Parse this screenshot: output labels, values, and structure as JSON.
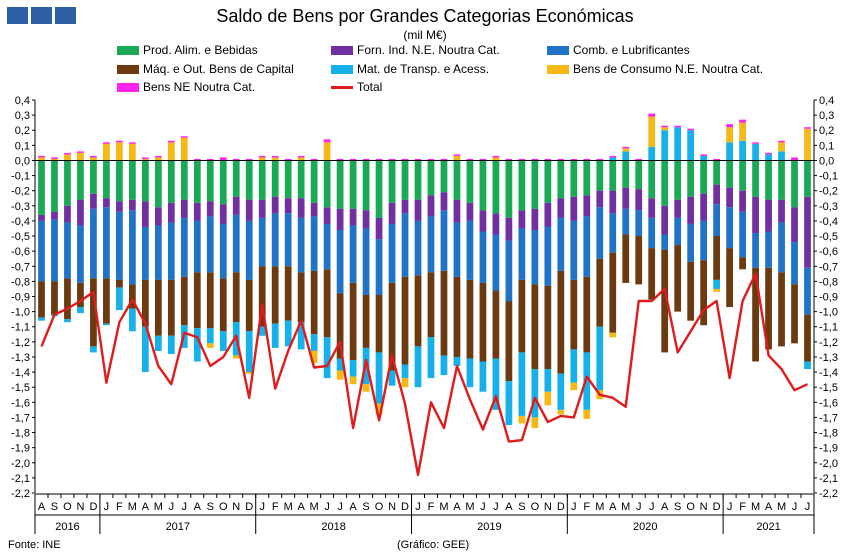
{
  "chart_data": {
    "type": "bar",
    "title": "Saldo de Bens por Grandes Categorias Económicas",
    "subtitle": "(mil M€)",
    "ylim": [
      -2.2,
      0.4
    ],
    "yticks": [
      "0,4",
      "0,3",
      "0,2",
      "0,1",
      "0,0",
      "-0,1",
      "-0,2",
      "-0,3",
      "-0,4",
      "-0,5",
      "-0,6",
      "-0,7",
      "-0,8",
      "-0,9",
      "-1,0",
      "-1,1",
      "-1,2",
      "-1,3",
      "-1,4",
      "-1,5",
      "-1,6",
      "-1,7",
      "-1,8",
      "-1,9",
      "-2,0",
      "-2,1",
      "-2,2"
    ],
    "categories": [
      "A",
      "S",
      "O",
      "N",
      "D",
      "J",
      "F",
      "M",
      "A",
      "M",
      "J",
      "J",
      "A",
      "S",
      "O",
      "N",
      "D",
      "J",
      "F",
      "M",
      "A",
      "M",
      "J",
      "J",
      "A",
      "S",
      "O",
      "N",
      "D",
      "J",
      "F",
      "M",
      "A",
      "M",
      "J",
      "J",
      "A",
      "S",
      "O",
      "N",
      "D",
      "J",
      "F",
      "M",
      "A",
      "M",
      "J",
      "J",
      "A",
      "S",
      "O",
      "N",
      "D",
      "J",
      "F",
      "M",
      "A",
      "M",
      "J",
      "J"
    ],
    "years": [
      {
        "label": "2016",
        "start": 0,
        "count": 5
      },
      {
        "label": "2017",
        "start": 5,
        "count": 12
      },
      {
        "label": "2018",
        "start": 17,
        "count": 12
      },
      {
        "label": "2019",
        "start": 29,
        "count": 12
      },
      {
        "label": "2020",
        "start": 41,
        "count": 12
      },
      {
        "label": "2021",
        "start": 53,
        "count": 7
      }
    ],
    "series": [
      {
        "name": "Prod. Alim. e Bebidas",
        "color": "#1aaa55",
        "values": [
          -0.36,
          -0.34,
          -0.3,
          -0.26,
          -0.22,
          -0.25,
          -0.27,
          -0.26,
          -0.27,
          -0.31,
          -0.28,
          -0.26,
          -0.28,
          -0.27,
          -0.29,
          -0.24,
          -0.26,
          -0.26,
          -0.24,
          -0.25,
          -0.25,
          -0.28,
          -0.31,
          -0.32,
          -0.32,
          -0.33,
          -0.38,
          -0.28,
          -0.26,
          -0.26,
          -0.23,
          -0.21,
          -0.26,
          -0.28,
          -0.33,
          -0.35,
          -0.38,
          -0.33,
          -0.32,
          -0.28,
          -0.25,
          -0.24,
          -0.23,
          -0.2,
          -0.2,
          -0.18,
          -0.19,
          -0.25,
          -0.3,
          -0.26,
          -0.24,
          -0.22,
          -0.16,
          -0.18,
          -0.2,
          -0.24,
          -0.26,
          -0.26,
          -0.31,
          -0.24
        ]
      },
      {
        "name": "Forn. Ind. N.E. Noutra Cat.",
        "color": "#7030a0",
        "values": [
          -0.04,
          -0.05,
          -0.11,
          -0.17,
          -0.1,
          -0.06,
          -0.07,
          -0.07,
          -0.17,
          -0.12,
          -0.13,
          -0.12,
          -0.12,
          -0.1,
          -0.13,
          -0.12,
          -0.14,
          -0.12,
          -0.11,
          -0.1,
          -0.13,
          -0.09,
          -0.11,
          -0.14,
          -0.11,
          -0.12,
          -0.14,
          -0.14,
          -0.09,
          -0.14,
          -0.14,
          -0.12,
          -0.15,
          -0.12,
          -0.14,
          -0.14,
          -0.15,
          -0.12,
          -0.14,
          -0.16,
          -0.13,
          -0.16,
          -0.14,
          -0.11,
          -0.15,
          -0.14,
          -0.14,
          -0.13,
          -0.19,
          -0.12,
          -0.18,
          -0.18,
          -0.13,
          -0.13,
          -0.14,
          -0.24,
          -0.21,
          -0.15,
          -0.23,
          -0.47
        ]
      },
      {
        "name": "Comb. e Lubrificantes",
        "color": "#1f74c8",
        "values": [
          -0.4,
          -0.41,
          -0.37,
          -0.38,
          -0.46,
          -0.47,
          -0.45,
          -0.49,
          -0.35,
          -0.36,
          -0.38,
          -0.39,
          -0.34,
          -0.37,
          -0.36,
          -0.38,
          -0.39,
          -0.32,
          -0.35,
          -0.35,
          -0.36,
          -0.36,
          -0.3,
          -0.42,
          -0.38,
          -0.44,
          -0.37,
          -0.39,
          -0.42,
          -0.36,
          -0.37,
          -0.4,
          -0.36,
          -0.39,
          -0.34,
          -0.37,
          -0.4,
          -0.34,
          -0.36,
          -0.39,
          -0.35,
          -0.39,
          -0.4,
          -0.34,
          -0.26,
          -0.17,
          -0.17,
          -0.2,
          -0.1,
          -0.18,
          -0.25,
          -0.26,
          -0.21,
          -0.27,
          -0.3,
          -0.23,
          -0.24,
          -0.33,
          -0.28,
          -0.31
        ]
      },
      {
        "name": "Máq. e Out. Bens de Capital",
        "color": "#6b3a10",
        "values": [
          -0.24,
          -0.22,
          -0.27,
          -0.16,
          -0.45,
          -0.3,
          -0.05,
          -0.16,
          -0.31,
          -0.37,
          -0.37,
          -0.32,
          -0.37,
          -0.37,
          -0.35,
          -0.33,
          -0.34,
          -0.4,
          -0.38,
          -0.36,
          -0.33,
          -0.42,
          -0.45,
          -0.43,
          -0.51,
          -0.35,
          -0.38,
          -0.58,
          -0.58,
          -0.47,
          -0.43,
          -0.56,
          -0.53,
          -0.52,
          -0.52,
          -0.45,
          -0.53,
          -0.48,
          -0.56,
          -0.55,
          -0.68,
          -0.46,
          -0.5,
          -0.45,
          -0.53,
          -0.32,
          -0.32,
          -0.34,
          -0.68,
          -0.44,
          -0.39,
          -0.43,
          -0.29,
          -0.39,
          -0.08,
          -0.62,
          -0.54,
          -0.49,
          -0.39,
          -0.31
        ]
      },
      {
        "name": "Mat. de Transp. e Acess.",
        "color": "#16b0ea",
        "values": [
          -0.02,
          -0.01,
          -0.02,
          -0.04,
          -0.04,
          -0.01,
          -0.15,
          -0.15,
          -0.3,
          -0.1,
          -0.12,
          -0.15,
          -0.22,
          -0.1,
          -0.13,
          -0.22,
          -0.27,
          -0.06,
          -0.16,
          -0.17,
          -0.18,
          -0.11,
          -0.27,
          -0.08,
          -0.11,
          -0.24,
          -0.34,
          -0.1,
          -0.09,
          -0.27,
          -0.27,
          -0.13,
          -0.06,
          -0.19,
          -0.2,
          -0.34,
          -0.29,
          -0.42,
          -0.32,
          -0.15,
          -0.24,
          -0.22,
          -0.38,
          -0.42,
          0.02,
          0.06,
          0.0,
          0.09,
          0.2,
          0.22,
          0.2,
          0.03,
          -0.06,
          0.12,
          0.13,
          0.11,
          0.04,
          0.06,
          0.0,
          -0.05
        ]
      },
      {
        "name": "Bens de Consumo N.E. Noutra Cat.",
        "color": "#f5b814",
        "values": [
          0.02,
          0.01,
          0.04,
          0.05,
          0.02,
          0.11,
          0.12,
          0.11,
          0.01,
          0.02,
          0.12,
          0.15,
          0.0,
          -0.03,
          0.0,
          -0.02,
          -0.01,
          0.02,
          0.02,
          0.0,
          0.02,
          -0.08,
          0.12,
          -0.06,
          -0.05,
          -0.05,
          -0.07,
          0.0,
          -0.06,
          0.0,
          0.0,
          0.0,
          0.03,
          0.0,
          0.0,
          0.02,
          0.0,
          -0.05,
          -0.07,
          -0.09,
          -0.03,
          -0.05,
          -0.06,
          -0.06,
          -0.03,
          0.02,
          0.0,
          0.2,
          0.02,
          0.0,
          0.0,
          0.0,
          -0.02,
          0.1,
          0.12,
          0.0,
          0.0,
          0.06,
          0.0,
          0.21
        ]
      },
      {
        "name": "Bens NE Noutra Cat.",
        "color": "#ff22ee",
        "values": [
          0.01,
          0.01,
          0.01,
          0.01,
          0.01,
          0.01,
          0.01,
          0.01,
          0.01,
          0.01,
          0.01,
          0.01,
          0.01,
          0.01,
          0.02,
          0.01,
          0.01,
          0.01,
          0.01,
          0.01,
          0.01,
          0.01,
          0.02,
          0.01,
          0.01,
          0.01,
          0.01,
          0.01,
          0.01,
          0.01,
          0.01,
          0.01,
          0.01,
          0.01,
          0.01,
          0.01,
          0.01,
          0.01,
          0.01,
          0.01,
          0.01,
          0.01,
          0.01,
          0.01,
          0.01,
          0.01,
          0.01,
          0.02,
          0.01,
          0.01,
          0.01,
          0.01,
          0.01,
          0.02,
          0.02,
          0.01,
          0.01,
          0.01,
          0.02,
          0.01
        ]
      }
    ],
    "total": {
      "name": "Total",
      "color": "#e01b1b",
      "values": [
        -1.23,
        -1.02,
        -0.98,
        -0.93,
        -0.87,
        -1.47,
        -1.07,
        -0.92,
        -1.08,
        -1.36,
        -1.48,
        -1.14,
        -1.17,
        -1.36,
        -1.3,
        -1.16,
        -1.57,
        -0.95,
        -1.51,
        -1.26,
        -1.06,
        -1.37,
        -1.36,
        -1.2,
        -1.77,
        -1.32,
        -1.72,
        -1.29,
        -1.61,
        -2.08,
        -1.6,
        -1.77,
        -1.36,
        -1.58,
        -1.78,
        -1.56,
        -1.86,
        -1.85,
        -1.57,
        -1.73,
        -1.69,
        -1.7,
        -1.43,
        -1.55,
        -1.57,
        -1.63,
        -0.93,
        -0.93,
        -0.85,
        -1.27,
        -1.13,
        -0.99,
        -0.93,
        -1.44,
        -0.93,
        -0.75,
        -1.29,
        -1.38,
        -1.52,
        -1.48
      ]
    },
    "legend": [
      {
        "label": "Prod. Alim. e Bebidas",
        "color": "#1aaa55",
        "kind": "box"
      },
      {
        "label": "Forn. Ind. N.E. Noutra Cat.",
        "color": "#7030a0",
        "kind": "box"
      },
      {
        "label": "Comb. e Lubrificantes",
        "color": "#1f74c8",
        "kind": "box"
      },
      {
        "label": "Máq. e Out. Bens de Capital",
        "color": "#6b3a10",
        "kind": "box"
      },
      {
        "label": "Mat. de Transp. e Acess.",
        "color": "#16b0ea",
        "kind": "box"
      },
      {
        "label": "Bens de Consumo N.E. Noutra Cat.",
        "color": "#f5b814",
        "kind": "box"
      },
      {
        "label": "Bens NE Noutra Cat.",
        "color": "#ff22ee",
        "kind": "box"
      },
      {
        "label": "Total",
        "color": "#e01b1b",
        "kind": "line"
      }
    ]
  },
  "footer": {
    "source": "Fonte: INE",
    "credit": "(Gráfico: GEE)"
  }
}
